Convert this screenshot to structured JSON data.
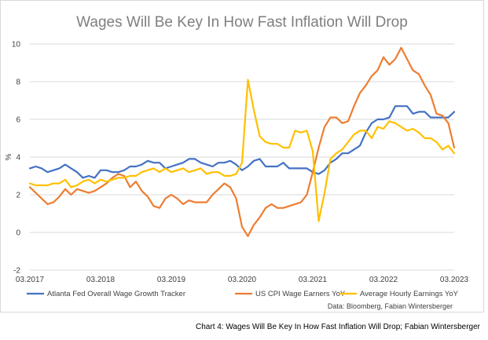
{
  "caption": "Chart 4: Wages Will Be Key In How Fast Inflation Will Drop; Fabian Wintersberger",
  "chart_data": {
    "type": "line",
    "title": "Wages Will Be Key In How Fast Inflation Will Drop",
    "ylabel": "%",
    "xlabel": "",
    "ylim": [
      -2,
      10
    ],
    "yticks": [
      -2,
      0,
      2,
      4,
      6,
      8,
      10
    ],
    "xlim": [
      "2017-03",
      "2023-03"
    ],
    "xticks": [
      "03.2017",
      "03.2018",
      "03.2019",
      "03.2020",
      "03.2021",
      "03.2022",
      "03.2023"
    ],
    "grid": "horizontal",
    "legend": "bottom",
    "source": "Data: Bloomberg, Fabian Wintersberger",
    "x": [
      "2017-03",
      "2017-04",
      "2017-05",
      "2017-06",
      "2017-07",
      "2017-08",
      "2017-09",
      "2017-10",
      "2017-11",
      "2017-12",
      "2018-01",
      "2018-02",
      "2018-03",
      "2018-04",
      "2018-05",
      "2018-06",
      "2018-07",
      "2018-08",
      "2018-09",
      "2018-10",
      "2018-11",
      "2018-12",
      "2019-01",
      "2019-02",
      "2019-03",
      "2019-04",
      "2019-05",
      "2019-06",
      "2019-07",
      "2019-08",
      "2019-09",
      "2019-10",
      "2019-11",
      "2019-12",
      "2020-01",
      "2020-02",
      "2020-03",
      "2020-04",
      "2020-05",
      "2020-06",
      "2020-07",
      "2020-08",
      "2020-09",
      "2020-10",
      "2020-11",
      "2020-12",
      "2021-01",
      "2021-02",
      "2021-03",
      "2021-04",
      "2021-05",
      "2021-06",
      "2021-07",
      "2021-08",
      "2021-09",
      "2021-10",
      "2021-11",
      "2021-12",
      "2022-01",
      "2022-02",
      "2022-03",
      "2022-04",
      "2022-05",
      "2022-06",
      "2022-07",
      "2022-08",
      "2022-09",
      "2022-10",
      "2022-11",
      "2022-12",
      "2023-01",
      "2023-02",
      "2023-03"
    ],
    "series": [
      {
        "name": "Atlanta Fed Overall Wage Growth Tracker",
        "color": "#4472c4",
        "values": [
          3.4,
          3.5,
          3.4,
          3.2,
          3.3,
          3.4,
          3.6,
          3.4,
          3.2,
          2.9,
          3.0,
          2.9,
          3.3,
          3.3,
          3.2,
          3.2,
          3.3,
          3.5,
          3.5,
          3.6,
          3.8,
          3.7,
          3.7,
          3.4,
          3.5,
          3.6,
          3.7,
          3.9,
          3.9,
          3.7,
          3.6,
          3.5,
          3.7,
          3.7,
          3.8,
          3.6,
          3.3,
          3.5,
          3.8,
          3.9,
          3.5,
          3.5,
          3.5,
          3.7,
          3.4,
          3.4,
          3.4,
          3.4,
          3.2,
          3.1,
          3.3,
          3.7,
          3.9,
          4.2,
          4.2,
          4.4,
          4.6,
          5.3,
          5.8,
          6.0,
          6.0,
          6.1,
          6.7,
          6.7,
          6.7,
          6.3,
          6.4,
          6.4,
          6.1,
          6.1,
          6.1,
          6.1,
          6.4
        ]
      },
      {
        "name": "US CPI Wage Earners YoY",
        "color": "#ed7d31",
        "values": [
          2.4,
          2.1,
          1.8,
          1.5,
          1.6,
          1.9,
          2.3,
          2.0,
          2.3,
          2.2,
          2.1,
          2.2,
          2.4,
          2.6,
          2.9,
          3.1,
          3.0,
          2.4,
          2.7,
          2.2,
          1.9,
          1.4,
          1.3,
          1.8,
          2.0,
          1.8,
          1.5,
          1.7,
          1.6,
          1.6,
          1.6,
          2.0,
          2.3,
          2.6,
          2.4,
          1.8,
          0.3,
          -0.2,
          0.4,
          0.8,
          1.3,
          1.5,
          1.3,
          1.3,
          1.4,
          1.5,
          1.6,
          2.0,
          3.2,
          4.5,
          5.6,
          6.1,
          6.1,
          5.8,
          5.9,
          6.7,
          7.4,
          7.8,
          8.3,
          8.6,
          9.3,
          8.9,
          9.2,
          9.8,
          9.2,
          8.6,
          8.4,
          7.8,
          7.3,
          6.3,
          6.2,
          5.8,
          4.5
        ]
      },
      {
        "name": "Average Hourly Earnings YoY",
        "color": "#ffc000",
        "values": [
          2.6,
          2.5,
          2.5,
          2.5,
          2.6,
          2.6,
          2.8,
          2.4,
          2.5,
          2.7,
          2.8,
          2.6,
          2.8,
          2.7,
          2.8,
          2.9,
          2.9,
          3.0,
          3.0,
          3.2,
          3.3,
          3.4,
          3.2,
          3.4,
          3.2,
          3.3,
          3.4,
          3.2,
          3.3,
          3.4,
          3.1,
          3.2,
          3.2,
          3.0,
          3.0,
          3.1,
          3.7,
          8.1,
          6.5,
          5.1,
          4.8,
          4.7,
          4.7,
          4.5,
          4.5,
          5.4,
          5.3,
          5.4,
          4.3,
          0.6,
          2.1,
          3.9,
          4.2,
          4.4,
          4.8,
          5.2,
          5.4,
          5.4,
          5.0,
          5.6,
          5.5,
          5.9,
          5.8,
          5.6,
          5.4,
          5.5,
          5.3,
          5.0,
          5.0,
          4.8,
          4.4,
          4.6,
          4.2
        ]
      }
    ]
  }
}
